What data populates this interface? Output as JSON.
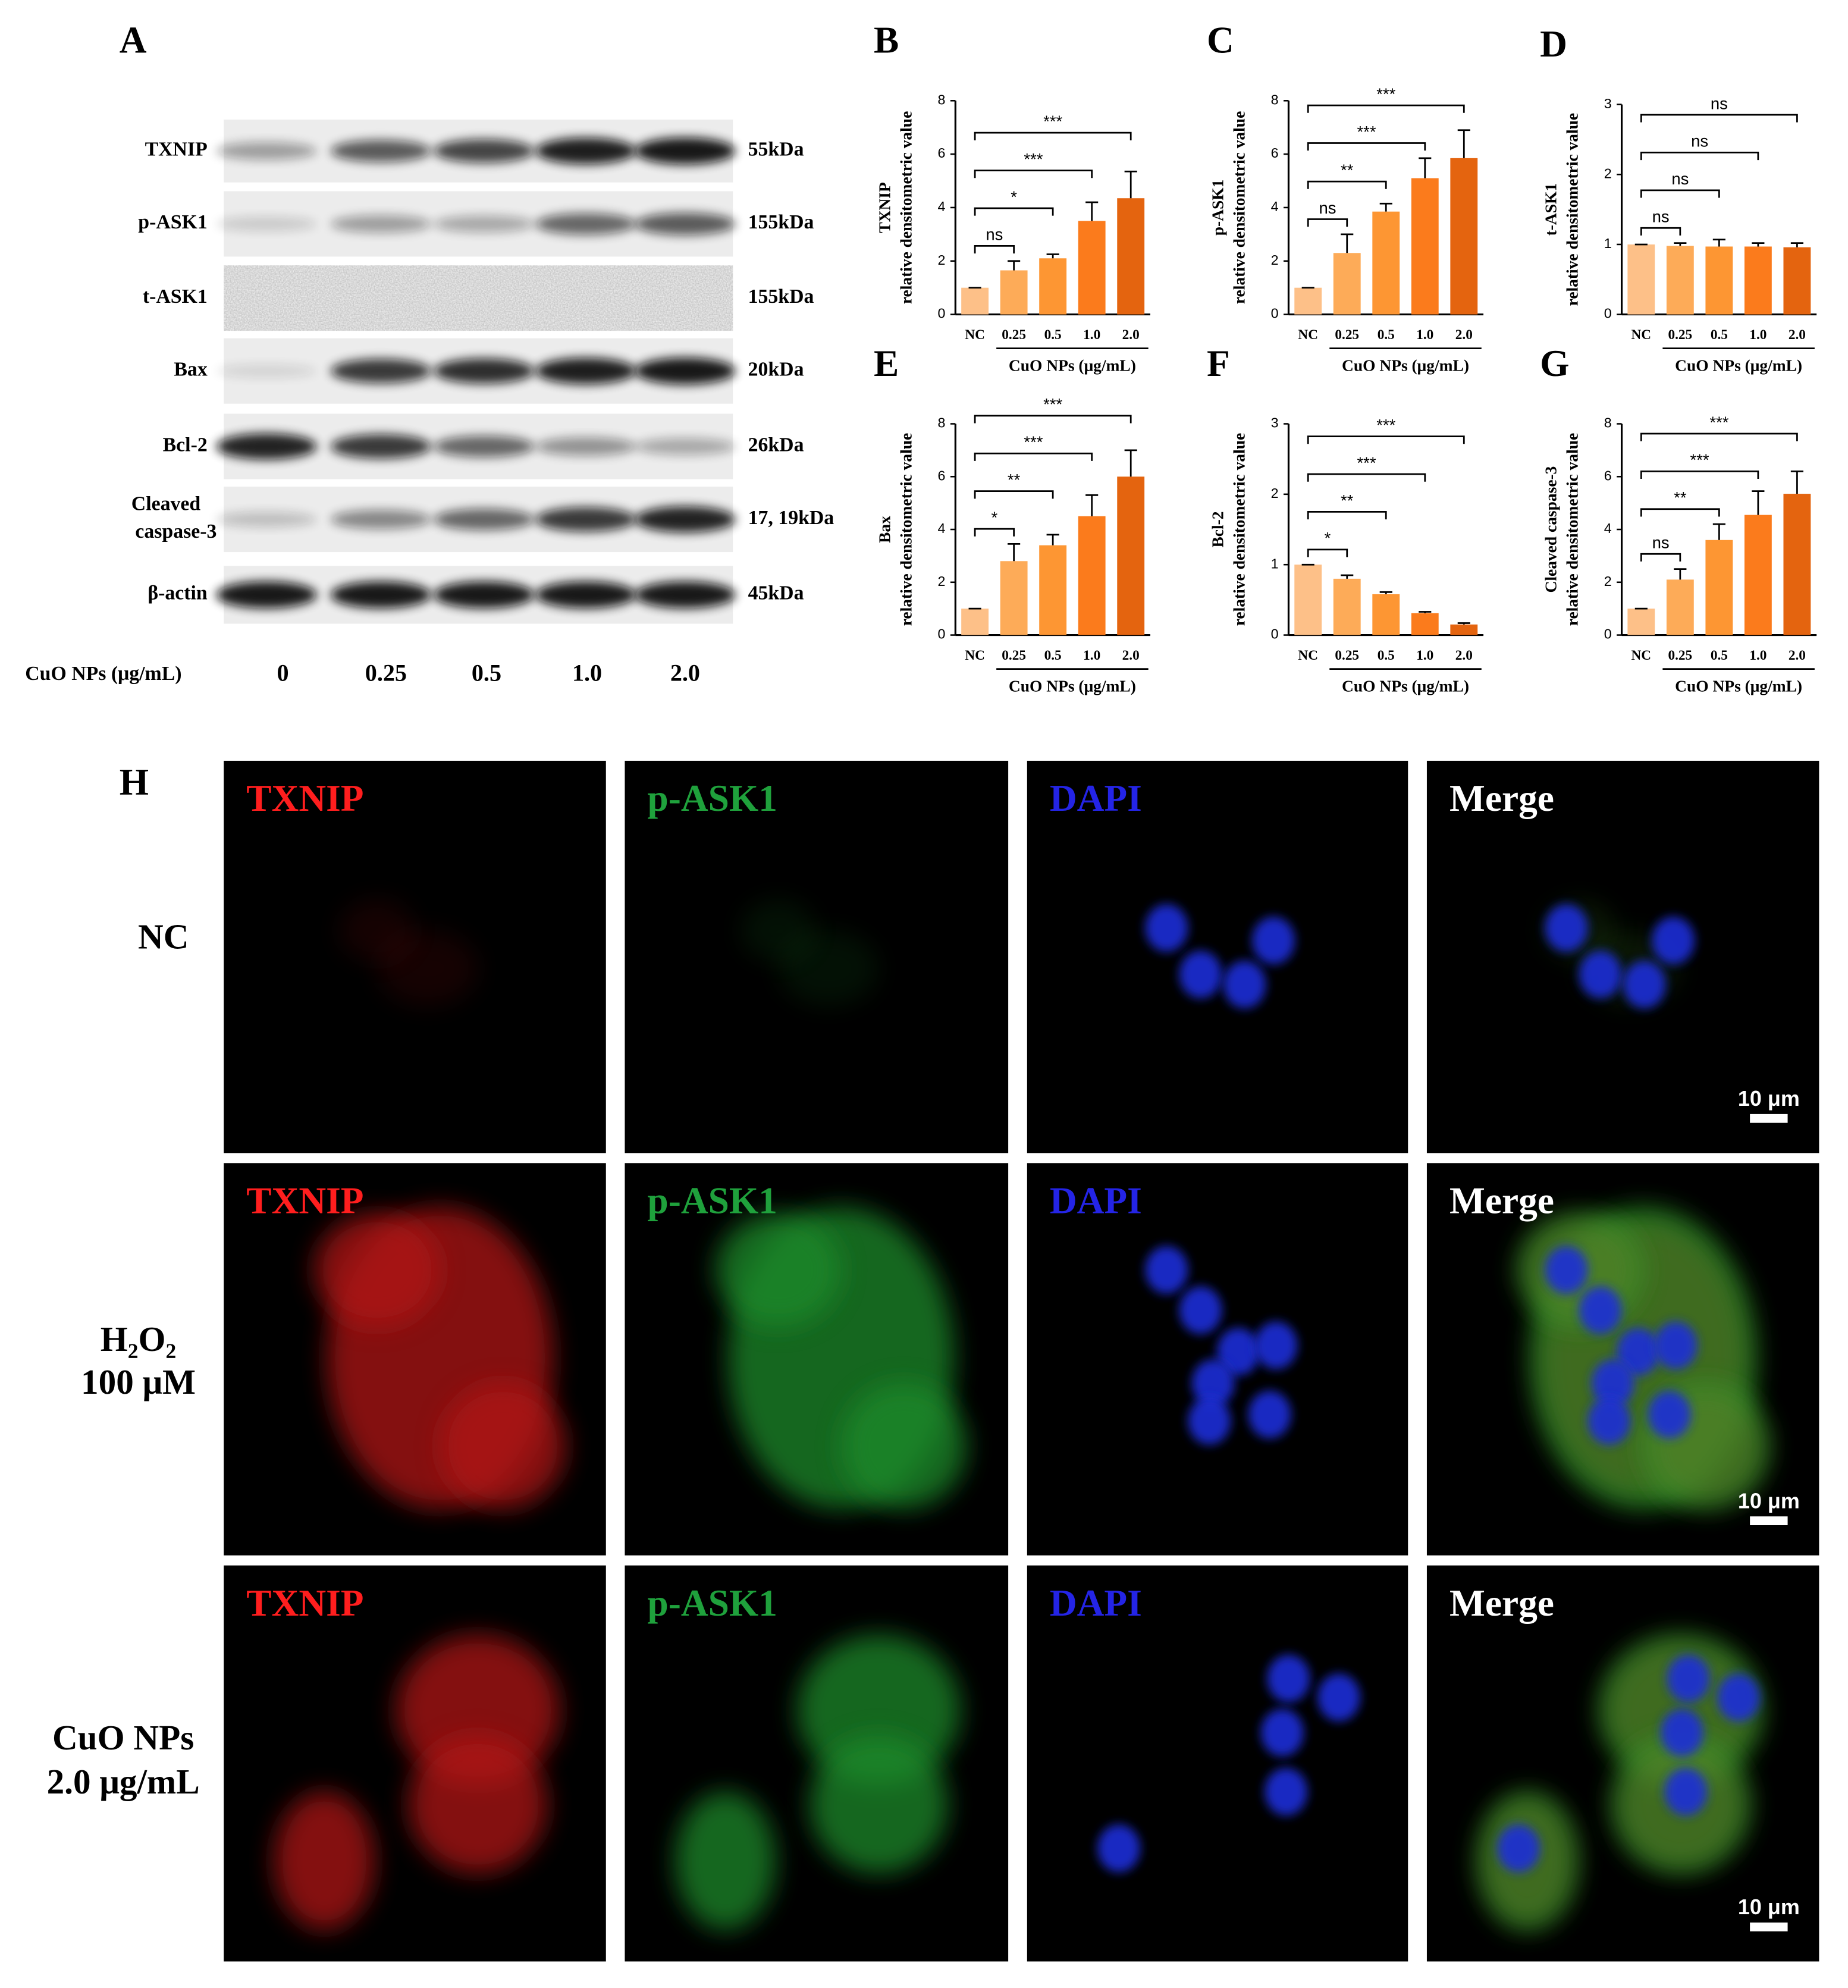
{
  "panel_a": {
    "label": "A",
    "proteins": [
      {
        "name": "TXNIP",
        "size": "55kDa"
      },
      {
        "name": "p-ASK1",
        "size": "155kDa"
      },
      {
        "name": "t-ASK1",
        "size": "155kDa"
      },
      {
        "name": "Bax",
        "size": "20kDa"
      },
      {
        "name": "Bcl-2",
        "size": "26kDa"
      },
      {
        "name": [
          "Cleaved",
          "caspase-3"
        ],
        "size": "17, 19kDa"
      },
      {
        "name": "β-actin",
        "size": "45kDa"
      }
    ],
    "x_label": "CuO NPs (μg/mL)",
    "doses": [
      "0",
      "0.25",
      "0.5",
      "1.0",
      "2.0"
    ]
  },
  "chart_data": [
    {
      "type": "bar",
      "title": "B",
      "ylabel": [
        "TXNIP",
        "relative densitometric value"
      ],
      "xlabel": "CuO NPs (μg/mL)",
      "categories": [
        "NC",
        "0.25",
        "0.5",
        "1.0",
        "2.0"
      ],
      "values": [
        1,
        1.65,
        2.1,
        3.5,
        4.35
      ],
      "errors": [
        0,
        0.35,
        0.15,
        0.7,
        1.0
      ],
      "colors": [
        "#fdc088",
        "#fdab58",
        "#fd9633",
        "#fb7b1c",
        "#e4640f"
      ],
      "significance": [
        "ns",
        "*",
        "***",
        "***"
      ],
      "ylim": [
        0,
        8
      ],
      "yticks": [
        0,
        2,
        4,
        6,
        8
      ]
    },
    {
      "type": "bar",
      "title": "C",
      "ylabel": [
        "p-ASK1",
        "relative densitometric value"
      ],
      "xlabel": "CuO NPs (μg/mL)",
      "categories": [
        "NC",
        "0.25",
        "0.5",
        "1.0",
        "2.0"
      ],
      "values": [
        1,
        2.3,
        3.85,
        5.1,
        5.85
      ],
      "errors": [
        0,
        0.7,
        0.3,
        0.75,
        1.05
      ],
      "colors": [
        "#fdc088",
        "#fdab58",
        "#fd9633",
        "#fb7b1c",
        "#e4640f"
      ],
      "significance": [
        "ns",
        "**",
        "***",
        "***"
      ],
      "ylim": [
        0,
        8
      ],
      "yticks": [
        0,
        2,
        4,
        6,
        8
      ]
    },
    {
      "type": "bar",
      "title": "D",
      "ylabel": [
        "t-ASK1",
        "relative densitometric value"
      ],
      "xlabel": "CuO NPs (μg/mL)",
      "categories": [
        "NC",
        "0.25",
        "0.5",
        "1.0",
        "2.0"
      ],
      "values": [
        1,
        0.98,
        0.97,
        0.97,
        0.96
      ],
      "errors": [
        0,
        0.04,
        0.1,
        0.05,
        0.06
      ],
      "colors": [
        "#fdc088",
        "#fdab58",
        "#fd9633",
        "#fb7b1c",
        "#e4640f"
      ],
      "significance": [
        "ns",
        "ns",
        "ns",
        "ns"
      ],
      "ylim": [
        0,
        3
      ],
      "yticks": [
        0,
        1,
        2,
        3
      ]
    },
    {
      "type": "bar",
      "title": "E",
      "ylabel": [
        "Bax",
        "relative densitometric value"
      ],
      "xlabel": "CuO NPs (μg/mL)",
      "categories": [
        "NC",
        "0.25",
        "0.5",
        "1.0",
        "2.0"
      ],
      "values": [
        1,
        2.8,
        3.4,
        4.5,
        6.0
      ],
      "errors": [
        0,
        0.65,
        0.4,
        0.8,
        1.0
      ],
      "colors": [
        "#fdc088",
        "#fdab58",
        "#fd9633",
        "#fb7b1c",
        "#e4640f"
      ],
      "significance": [
        "*",
        "**",
        "***",
        "***"
      ],
      "ylim": [
        0,
        8
      ],
      "yticks": [
        0,
        2,
        4,
        6,
        8
      ]
    },
    {
      "type": "bar",
      "title": "F",
      "ylabel": [
        "Bcl-2",
        "relative densitometric value"
      ],
      "xlabel": "CuO NPs (μg/mL)",
      "categories": [
        "NC",
        "0.25",
        "0.5",
        "1.0",
        "2.0"
      ],
      "values": [
        1,
        0.8,
        0.58,
        0.31,
        0.15
      ],
      "errors": [
        0,
        0.05,
        0.03,
        0.02,
        0.02
      ],
      "colors": [
        "#fdc088",
        "#fdab58",
        "#fd9633",
        "#fb7b1c",
        "#e4640f"
      ],
      "significance": [
        "*",
        "**",
        "***",
        "***"
      ],
      "ylim": [
        0,
        3
      ],
      "yticks": [
        0,
        1,
        2,
        3
      ]
    },
    {
      "type": "bar",
      "title": "G",
      "ylabel": [
        "Cleaved caspase-3",
        "relative densitometric value"
      ],
      "xlabel": "CuO NPs (μg/mL)",
      "categories": [
        "NC",
        "0.25",
        "0.5",
        "1.0",
        "2.0"
      ],
      "values": [
        1,
        2.1,
        3.6,
        4.55,
        5.35
      ],
      "errors": [
        0,
        0.4,
        0.6,
        0.9,
        0.85
      ],
      "colors": [
        "#fdc088",
        "#fdab58",
        "#fd9633",
        "#fb7b1c",
        "#e4640f"
      ],
      "significance": [
        "ns",
        "**",
        "***",
        "***"
      ],
      "ylim": [
        0,
        8
      ],
      "yticks": [
        0,
        2,
        4,
        6,
        8
      ]
    }
  ],
  "panel_h": {
    "label": "H",
    "channels": [
      {
        "name": "TXNIP",
        "color": "#ff1e1e"
      },
      {
        "name": "p-ASK1",
        "color": "#1fa13c"
      },
      {
        "name": "DAPI",
        "color": "#2424e6"
      },
      {
        "name": "Merge",
        "color": "#ffffff"
      }
    ],
    "conditions": [
      [
        "NC"
      ],
      [
        "H₂O₂",
        "100 μM"
      ],
      [
        "CuO NPs",
        "2.0 μg/mL"
      ]
    ],
    "scale_bar": "10 μm"
  }
}
